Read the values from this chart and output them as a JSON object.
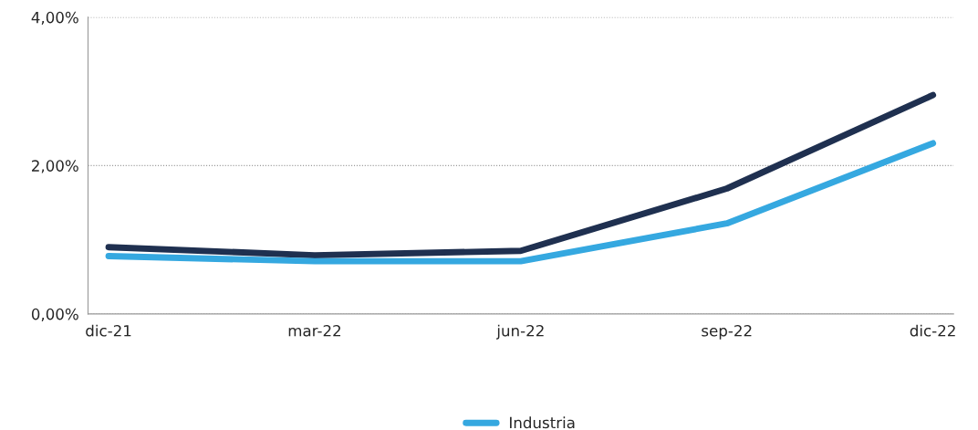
{
  "chart_data": {
    "type": "line",
    "categories": [
      "dic-21",
      "mar-22",
      "jun-22",
      "sep-22",
      "dic-22"
    ],
    "series": [
      {
        "color": "#1f3050",
        "values": [
          0.9,
          0.79,
          0.85,
          1.69,
          2.95
        ]
      },
      {
        "name": "Industria",
        "color": "#35a8e0",
        "values": [
          0.78,
          0.71,
          0.71,
          1.22,
          2.3
        ]
      }
    ],
    "ylim": [
      0,
      4
    ],
    "yticks": [
      {
        "value": 0,
        "label": "0,00%"
      },
      {
        "value": 2,
        "label": "2,00%"
      },
      {
        "value": 4,
        "label": "4,00%"
      }
    ],
    "grid": "y",
    "legend": "bottom",
    "marker": "none",
    "line_style": "solid"
  }
}
